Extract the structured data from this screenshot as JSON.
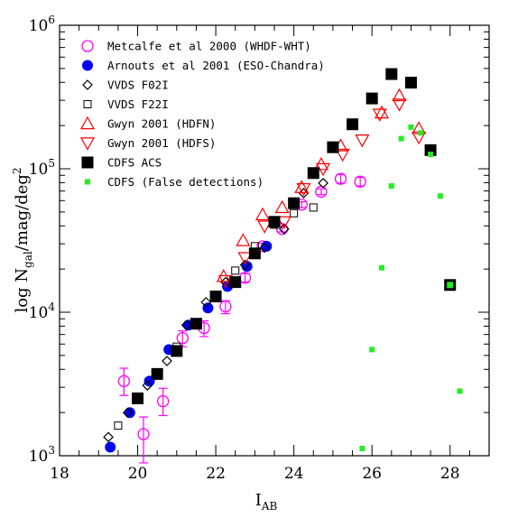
{
  "chart_data": {
    "type": "scatter",
    "title": "",
    "xlabel": {
      "main": "I",
      "sub": "AB"
    },
    "ylabel": {
      "main": "log N",
      "sub": "gal",
      "rest": "/mag/deg",
      "sup": "2"
    },
    "xlim": [
      18,
      29
    ],
    "ylim_log10": [
      3,
      6
    ],
    "y_scale": "log",
    "x_ticks": [
      "18",
      "20",
      "22",
      "24",
      "26",
      "28"
    ],
    "y_ticks": [
      {
        "base": "10",
        "exp": "3"
      },
      {
        "base": "10",
        "exp": "4"
      },
      {
        "base": "10",
        "exp": "5"
      },
      {
        "base": "10",
        "exp": "6"
      }
    ],
    "legend_position": "top-left",
    "series": [
      {
        "name": "Metcalfe et al 2000 (WHDF-WHT)",
        "marker": "circle-open",
        "color": "#ff00ff",
        "points": [
          {
            "x": 19.65,
            "y": 3.52,
            "elo": 0.1,
            "ehi": 0.09
          },
          {
            "x": 20.15,
            "y": 3.15,
            "elo": 0.2,
            "ehi": 0.12
          },
          {
            "x": 20.65,
            "y": 3.38,
            "elo": 0.1,
            "ehi": 0.09
          },
          {
            "x": 21.15,
            "y": 3.82,
            "elo": 0.06,
            "ehi": 0.05
          },
          {
            "x": 21.7,
            "y": 3.89,
            "elo": 0.06,
            "ehi": 0.05
          },
          {
            "x": 22.25,
            "y": 4.04,
            "elo": 0.05,
            "ehi": 0.04
          },
          {
            "x": 22.75,
            "y": 4.24,
            "elo": 0.03,
            "ehi": 0.03
          },
          {
            "x": 23.2,
            "y": 4.46,
            "elo": 0.02,
            "ehi": 0.02
          },
          {
            "x": 23.7,
            "y": 4.58,
            "elo": 0.02,
            "ehi": 0.02
          },
          {
            "x": 24.2,
            "y": 4.75,
            "elo": 0.02,
            "ehi": 0.02
          },
          {
            "x": 24.7,
            "y": 4.84,
            "elo": 0.02,
            "ehi": 0.02
          },
          {
            "x": 25.2,
            "y": 4.93,
            "elo": 0.03,
            "ehi": 0.03
          },
          {
            "x": 25.7,
            "y": 4.91,
            "elo": 0.03,
            "ehi": 0.03
          }
        ]
      },
      {
        "name": "Arnouts et al 2001 (ESO-Chandra)",
        "marker": "circle-filled",
        "color": "#0000ff",
        "points": [
          {
            "x": 19.3,
            "y": 3.06
          },
          {
            "x": 19.8,
            "y": 3.3
          },
          {
            "x": 20.3,
            "y": 3.52
          },
          {
            "x": 20.8,
            "y": 3.74
          },
          {
            "x": 21.3,
            "y": 3.91
          },
          {
            "x": 21.8,
            "y": 4.03
          },
          {
            "x": 22.3,
            "y": 4.18
          },
          {
            "x": 22.8,
            "y": 4.32
          },
          {
            "x": 23.3,
            "y": 4.46
          }
        ]
      },
      {
        "name": "VVDS F02I",
        "marker": "diamond-open",
        "color": "#000000",
        "points": [
          {
            "x": 19.25,
            "y": 3.13
          },
          {
            "x": 19.75,
            "y": 3.3
          },
          {
            "x": 20.25,
            "y": 3.49
          },
          {
            "x": 20.75,
            "y": 3.66
          },
          {
            "x": 21.25,
            "y": 3.91
          },
          {
            "x": 21.75,
            "y": 4.07
          },
          {
            "x": 22.25,
            "y": 4.21
          },
          {
            "x": 22.75,
            "y": 4.33
          },
          {
            "x": 23.25,
            "y": 4.45
          },
          {
            "x": 23.75,
            "y": 4.58
          },
          {
            "x": 24.25,
            "y": 4.83
          },
          {
            "x": 24.75,
            "y": 4.9
          }
        ]
      },
      {
        "name": "VVDS F22I",
        "marker": "square-open",
        "color": "#000000",
        "points": [
          {
            "x": 19.5,
            "y": 3.21
          },
          {
            "x": 20.0,
            "y": 3.41
          },
          {
            "x": 20.5,
            "y": 3.56
          },
          {
            "x": 21.0,
            "y": 3.76
          },
          {
            "x": 21.5,
            "y": 3.93
          },
          {
            "x": 22.0,
            "y": 4.11
          },
          {
            "x": 22.5,
            "y": 4.29
          },
          {
            "x": 23.0,
            "y": 4.46
          },
          {
            "x": 23.5,
            "y": 4.61
          },
          {
            "x": 24.0,
            "y": 4.69
          },
          {
            "x": 24.5,
            "y": 4.73
          }
        ]
      },
      {
        "name": "Gwyn 2001 (HDFN)",
        "marker": "triangle-up-open",
        "color": "#ff0000",
        "points": [
          {
            "x": 22.2,
            "y": 4.25
          },
          {
            "x": 22.7,
            "y": 4.5
          },
          {
            "x": 23.2,
            "y": 4.68
          },
          {
            "x": 23.7,
            "y": 4.73
          },
          {
            "x": 24.2,
            "y": 4.87
          },
          {
            "x": 24.7,
            "y": 5.03
          },
          {
            "x": 25.2,
            "y": 5.16
          },
          {
            "x": 26.25,
            "y": 5.39
          },
          {
            "x": 26.7,
            "y": 5.51
          },
          {
            "x": 27.2,
            "y": 5.28
          }
        ]
      },
      {
        "name": "Gwyn 2001 (HDFS)",
        "marker": "triangle-down-open",
        "color": "#ff0000",
        "points": [
          {
            "x": 22.25,
            "y": 4.22
          },
          {
            "x": 22.75,
            "y": 4.38
          },
          {
            "x": 23.25,
            "y": 4.6
          },
          {
            "x": 23.75,
            "y": 4.63
          },
          {
            "x": 24.25,
            "y": 4.86
          },
          {
            "x": 24.75,
            "y": 5.0
          },
          {
            "x": 25.25,
            "y": 5.1
          },
          {
            "x": 25.75,
            "y": 5.2
          },
          {
            "x": 26.2,
            "y": 5.38
          },
          {
            "x": 26.7,
            "y": 5.45
          },
          {
            "x": 27.2,
            "y": 5.22
          }
        ]
      },
      {
        "name": "CDFS ACS",
        "marker": "square-filled",
        "color": "#000000",
        "points": [
          {
            "x": 20.0,
            "y": 3.4
          },
          {
            "x": 20.5,
            "y": 3.57
          },
          {
            "x": 21.0,
            "y": 3.73
          },
          {
            "x": 21.5,
            "y": 3.92
          },
          {
            "x": 22.0,
            "y": 4.11
          },
          {
            "x": 22.5,
            "y": 4.21
          },
          {
            "x": 23.0,
            "y": 4.41
          },
          {
            "x": 23.5,
            "y": 4.63
          },
          {
            "x": 24.0,
            "y": 4.76
          },
          {
            "x": 24.5,
            "y": 4.97
          },
          {
            "x": 25.0,
            "y": 5.15
          },
          {
            "x": 25.5,
            "y": 5.31
          },
          {
            "x": 26.0,
            "y": 5.49
          },
          {
            "x": 26.5,
            "y": 5.66
          },
          {
            "x": 27.0,
            "y": 5.6
          },
          {
            "x": 27.5,
            "y": 5.13
          },
          {
            "x": 28.0,
            "y": 4.19
          }
        ]
      },
      {
        "name": "CDFS (False detections)",
        "marker": "square-small-filled",
        "color": "#22ee22",
        "points": [
          {
            "x": 25.75,
            "y": 3.05
          },
          {
            "x": 26.0,
            "y": 3.74
          },
          {
            "x": 26.25,
            "y": 4.31
          },
          {
            "x": 26.5,
            "y": 4.88
          },
          {
            "x": 26.75,
            "y": 5.21
          },
          {
            "x": 27.0,
            "y": 5.29
          },
          {
            "x": 27.25,
            "y": 5.25
          },
          {
            "x": 27.5,
            "y": 5.1
          },
          {
            "x": 27.75,
            "y": 4.81
          },
          {
            "x": 28.0,
            "y": 4.19
          },
          {
            "x": 28.25,
            "y": 3.45
          }
        ]
      }
    ]
  }
}
